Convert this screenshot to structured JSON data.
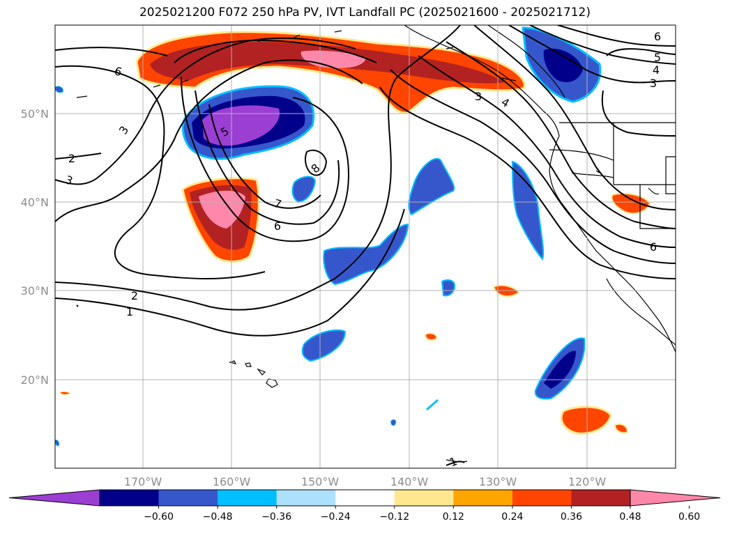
{
  "title": "2025021200 F072 250 hPa PV, IVT Landfall PC (2025021600 - 2025021712)",
  "longitude_labels": [
    "170°W",
    "160°W",
    "150°W",
    "140°W",
    "130°W",
    "120°W"
  ],
  "latitude_labels": [
    "50°N",
    "40°N",
    "30°N",
    "20°N"
  ],
  "colorbar": {
    "tick_labels": [
      "−0.60",
      "−0.48",
      "−0.36",
      "−0.24",
      "−0.12",
      "0.12",
      "0.24",
      "0.36",
      "0.48",
      "0.60"
    ],
    "colors": [
      "#9b3fd3",
      "#00008b",
      "#3657cc",
      "#00bfff",
      "#ade0fa",
      "#ffffff",
      "#ffe890",
      "#ffa500",
      "#ff4500",
      "#b22222",
      "#ff88aa"
    ]
  },
  "contour_labels": [
    "6",
    "3",
    "2",
    "3",
    "5",
    "8",
    "7",
    "6",
    "2",
    "1",
    "6",
    "5",
    "4",
    "3",
    "6",
    "3",
    "4",
    "1"
  ],
  "colors": {
    "contour": "#000000",
    "coastline": "#000000",
    "grid": "#b0b0b0",
    "tick_text": "#8c8c8c"
  }
}
